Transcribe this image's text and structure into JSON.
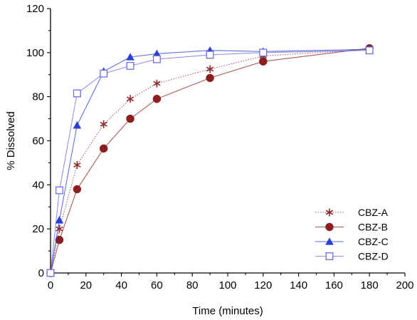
{
  "chart_data": {
    "type": "line",
    "title": "",
    "xlabel": "Time (minutes)",
    "ylabel": "% Dissolved",
    "xlim": [
      0,
      200
    ],
    "ylim": [
      0,
      120
    ],
    "xticks": [
      0,
      20,
      40,
      60,
      80,
      100,
      120,
      140,
      160,
      180,
      200
    ],
    "yticks": [
      0,
      20,
      40,
      60,
      80,
      100,
      120
    ],
    "grid": false,
    "legend_position": "bottom-right",
    "series": [
      {
        "name": "CBZ-A",
        "marker": "asterisk",
        "color": "#8b2a2a",
        "line_style": "dotted",
        "x": [
          0,
          5,
          15,
          30,
          45,
          60,
          90,
          120,
          180
        ],
        "y": [
          0,
          20,
          49,
          67.5,
          79,
          86,
          92.5,
          98.5,
          101.5
        ]
      },
      {
        "name": "CBZ-B",
        "marker": "filled-circle",
        "color": "#8b1f1f",
        "line_style": "solid",
        "x": [
          0,
          5,
          15,
          30,
          45,
          60,
          90,
          120,
          180
        ],
        "y": [
          0,
          15,
          38,
          56.5,
          70,
          79,
          88.5,
          96,
          102
        ]
      },
      {
        "name": "CBZ-C",
        "marker": "filled-triangle",
        "color": "#2b3fd6",
        "line_style": "solid",
        "x": [
          0,
          5,
          15,
          30,
          45,
          60,
          90,
          120,
          180
        ],
        "y": [
          0,
          24,
          67,
          91.5,
          98,
          99.5,
          101,
          100.5,
          101.5
        ]
      },
      {
        "name": "CBZ-D",
        "marker": "open-square",
        "color": "#6b6ee0",
        "line_style": "solid",
        "x": [
          0,
          5,
          15,
          30,
          45,
          60,
          90,
          120,
          180
        ],
        "y": [
          0,
          37.5,
          81.5,
          90.5,
          94,
          97,
          99,
          100,
          101
        ]
      }
    ]
  }
}
